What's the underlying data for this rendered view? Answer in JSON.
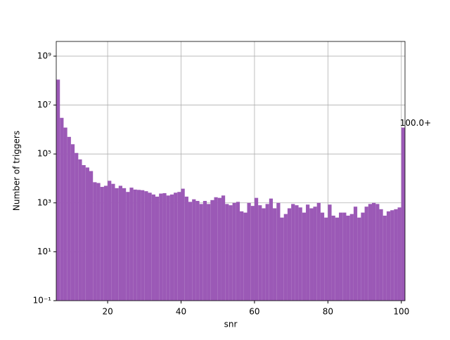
{
  "chart_data": {
    "type": "histogram",
    "xlabel": "snr",
    "ylabel": "Number of triggers",
    "annotation": "100.0+",
    "color": "#9b59b6",
    "grid": true,
    "ylog": true,
    "bins": [
      6,
      7,
      8,
      9,
      10,
      11,
      12,
      13,
      14,
      15,
      16,
      17,
      18,
      19,
      20,
      21,
      22,
      23,
      24,
      25,
      26,
      27,
      28,
      29,
      30,
      31,
      32,
      33,
      34,
      35,
      36,
      37,
      38,
      39,
      40,
      41,
      42,
      43,
      44,
      45,
      46,
      47,
      48,
      49,
      50,
      51,
      52,
      53,
      54,
      55,
      56,
      57,
      58,
      59,
      60,
      61,
      62,
      63,
      64,
      65,
      66,
      67,
      68,
      69,
      70,
      71,
      72,
      73,
      74,
      75,
      76,
      77,
      78,
      79,
      80,
      81,
      82,
      83,
      84,
      85,
      86,
      87,
      88,
      89,
      90,
      91,
      92,
      93,
      94,
      95,
      96,
      97,
      98,
      99,
      100,
      101
    ],
    "values": [
      110000000,
      3000000,
      1200000,
      500000,
      250000,
      110000,
      60000,
      35000,
      28000,
      20000,
      7000,
      6500,
      4500,
      5000,
      8000,
      6000,
      4000,
      5000,
      4000,
      2800,
      4200,
      3500,
      3400,
      3300,
      3000,
      2600,
      2200,
      1800,
      2400,
      2500,
      2000,
      2200,
      2600,
      2800,
      3800,
      1800,
      1100,
      1400,
      1200,
      900,
      1200,
      900,
      1300,
      1700,
      1600,
      2000,
      900,
      800,
      1000,
      1100,
      450,
      400,
      1000,
      750,
      1600,
      800,
      600,
      900,
      1500,
      600,
      1000,
      250,
      350,
      600,
      900,
      800,
      650,
      400,
      850,
      600,
      700,
      1000,
      400,
      250,
      850,
      300,
      250,
      400,
      400,
      300,
      350,
      700,
      250,
      400,
      700,
      900,
      1000,
      900,
      550,
      300,
      450,
      500,
      550,
      650,
      1200000
    ],
    "xlim": [
      6,
      101
    ],
    "xticks": [
      20,
      40,
      60,
      80,
      100
    ],
    "ylim": [
      0.1,
      4000000000
    ],
    "yticks": [
      {
        "value": 0.1,
        "label": "10⁻¹"
      },
      {
        "value": 10,
        "label": "10¹"
      },
      {
        "value": 1000,
        "label": "10³"
      },
      {
        "value": 100000,
        "label": "10⁵"
      },
      {
        "value": 10000000,
        "label": "10⁷"
      },
      {
        "value": 1000000000,
        "label": "10⁹"
      }
    ]
  }
}
